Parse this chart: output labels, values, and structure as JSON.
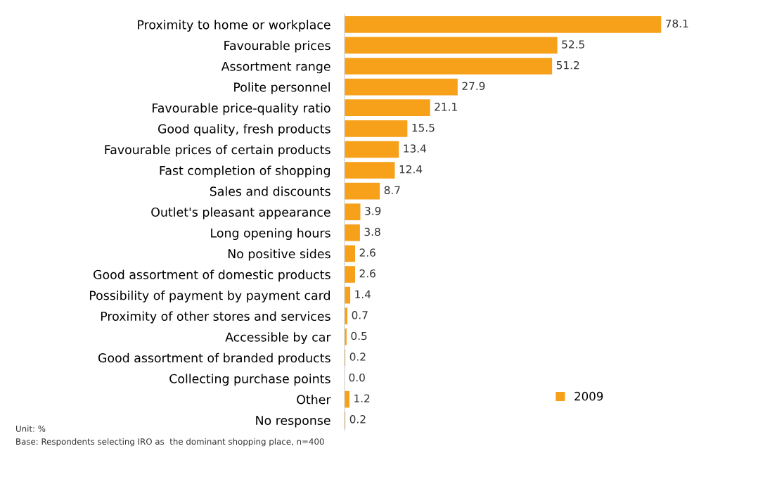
{
  "chart_data": {
    "type": "bar",
    "orientation": "horizontal",
    "categories": [
      "Proximity to home or workplace",
      "Favourable prices",
      "Assortment range",
      "Polite personnel",
      "Favourable price-quality ratio",
      "Good quality, fresh products",
      "Favourable prices of certain products",
      "Fast completion of shopping",
      "Sales and discounts",
      "Outlet's pleasant appearance",
      "Long opening hours",
      "No positive sides",
      "Good assortment of domestic products",
      "Possibility of payment by payment card",
      "Proximity of other stores and services",
      "Accessible by car",
      "Good assortment of branded products",
      "Collecting purchase points",
      "Other",
      "No response"
    ],
    "series": [
      {
        "name": "2009",
        "color": "#f7a11a",
        "values": [
          78.1,
          52.5,
          51.2,
          27.9,
          21.1,
          15.5,
          13.4,
          12.4,
          8.7,
          3.9,
          3.8,
          2.6,
          2.6,
          1.4,
          0.7,
          0.5,
          0.2,
          0.0,
          1.2,
          0.2
        ],
        "value_labels": [
          "78.1",
          "52.5",
          "51.2",
          "27.9",
          "21.1",
          "15.5",
          "13.4",
          "12.4",
          "8.7",
          "3.9",
          "3.8",
          "2.6",
          "2.6",
          "1.4",
          "0.7",
          "0.5",
          "0.2",
          "0.0",
          "1.2",
          "0.2"
        ]
      }
    ],
    "legend": "bottom right",
    "grid": false,
    "tick_labels": "y",
    "annotations": [
      "Unit: %",
      "Base: Respondents selecting IRO as  the dominant shopping place, n=400"
    ]
  }
}
